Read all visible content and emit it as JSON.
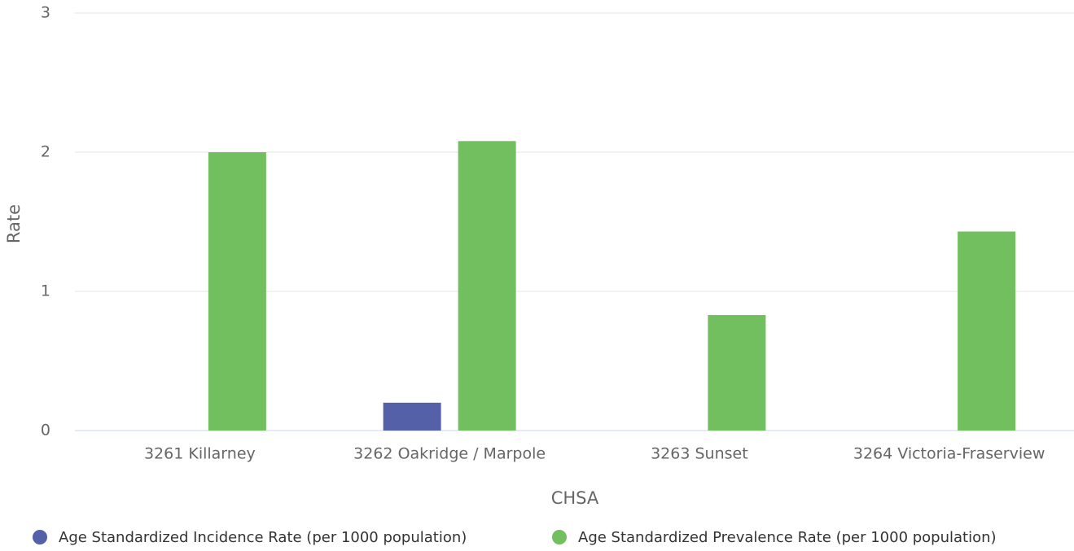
{
  "chart_data": {
    "type": "bar",
    "categories": [
      "3261 Killarney",
      "3262 Oakridge / Marpole",
      "3263 Sunset",
      "3264 Victoria-Fraserview"
    ],
    "series": [
      {
        "name": "Age Standardized Incidence Rate (per 1000 population)",
        "color": "#5461a8",
        "values": [
          null,
          0.2,
          null,
          null
        ]
      },
      {
        "name": "Age Standardized Prevalence Rate (per 1000 population)",
        "color": "#72bf60",
        "values": [
          2.0,
          2.08,
          0.83,
          1.43
        ]
      }
    ],
    "ylabel": "Rate",
    "xlabel": "CHSA",
    "ylim": [
      0,
      3
    ],
    "yticks": [
      0,
      1,
      2,
      3
    ],
    "grid": true,
    "legend": "bottom"
  }
}
